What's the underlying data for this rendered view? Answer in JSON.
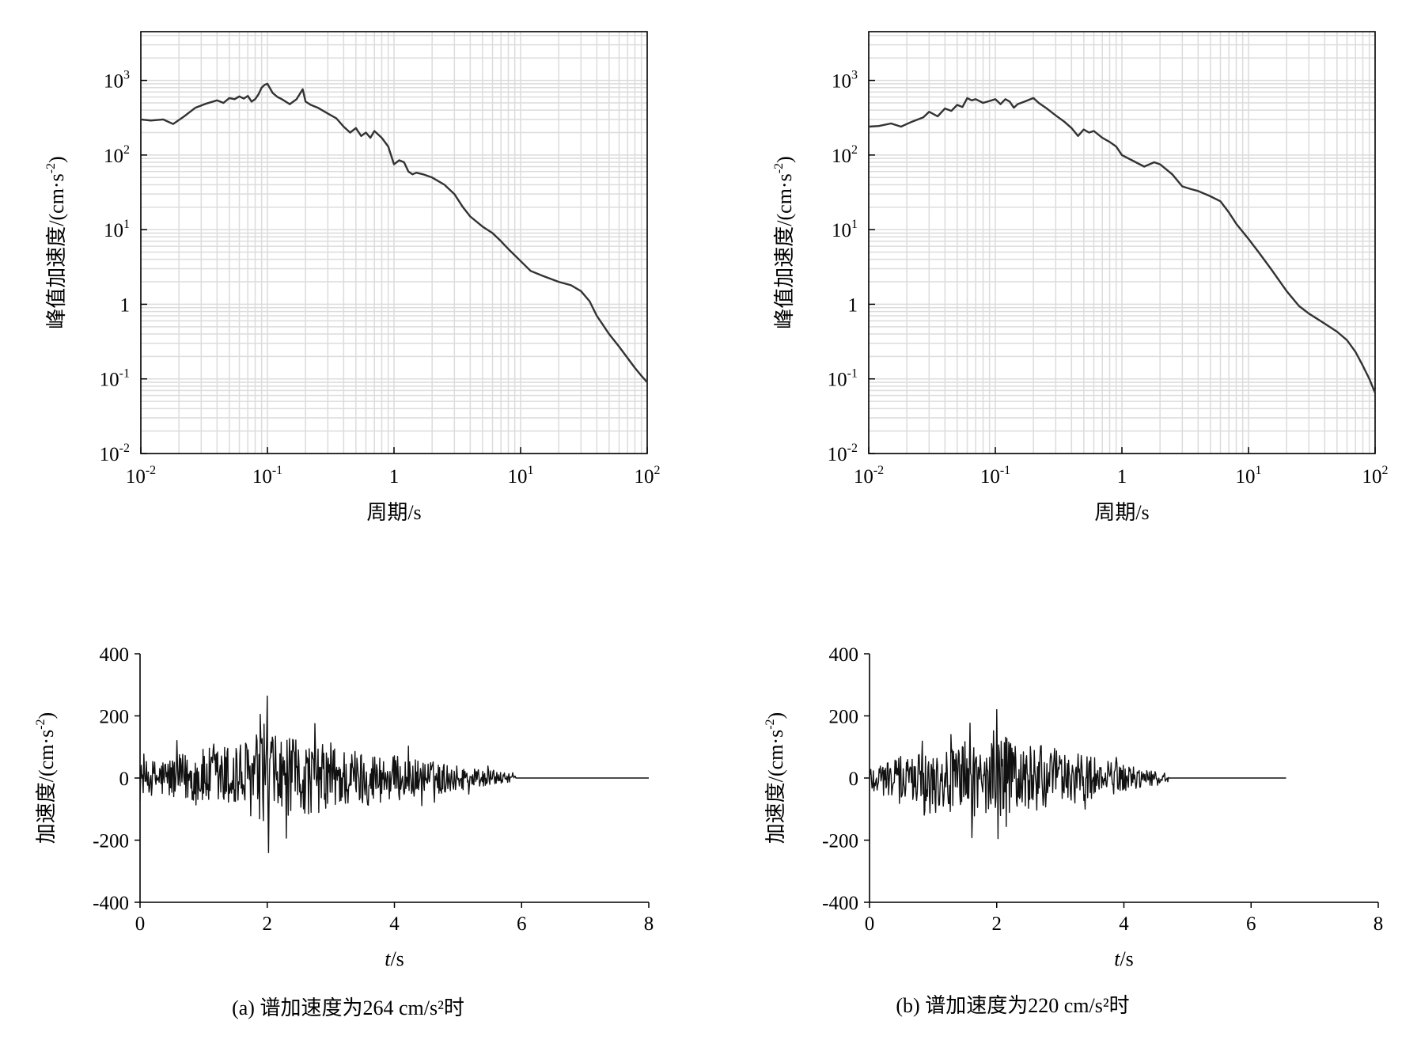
{
  "chart_data": [
    {
      "panel": "a-top",
      "type": "line",
      "xscale": "log",
      "yscale": "log",
      "xlim": [
        0.01,
        100
      ],
      "ylim": [
        0.01,
        4500
      ],
      "x_ticks": [
        {
          "base": "10",
          "exp": "-2"
        },
        {
          "base": "10",
          "exp": "-1"
        },
        {
          "base": "1",
          "exp": ""
        },
        {
          "base": "10",
          "exp": "1"
        },
        {
          "base": "10",
          "exp": "2"
        }
      ],
      "y_ticks": [
        {
          "base": "10",
          "exp": "-2"
        },
        {
          "base": "10",
          "exp": "-1"
        },
        {
          "base": "1",
          "exp": ""
        },
        {
          "base": "10",
          "exp": "1"
        },
        {
          "base": "10",
          "exp": "2"
        },
        {
          "base": "10",
          "exp": "3"
        }
      ],
      "xlabel": "周期/s",
      "ylabel": "峰值加速度/(cm·s⁻²)",
      "grid": true,
      "series": [
        {
          "x": [
            0.01,
            0.012,
            0.015,
            0.018,
            0.022,
            0.027,
            0.033,
            0.04,
            0.045,
            0.05,
            0.055,
            0.06,
            0.065,
            0.07,
            0.075,
            0.08,
            0.085,
            0.09,
            0.095,
            0.1,
            0.11,
            0.12,
            0.13,
            0.15,
            0.17,
            0.19,
            0.2,
            0.22,
            0.25,
            0.3,
            0.35,
            0.4,
            0.45,
            0.5,
            0.55,
            0.6,
            0.65,
            0.7,
            0.8,
            0.9,
            1.0,
            1.1,
            1.2,
            1.3,
            1.4,
            1.5,
            1.7,
            2.0,
            2.5,
            3.0,
            3.5,
            4.0,
            5.0,
            6.0,
            7.0,
            8.0,
            10,
            12,
            15,
            20,
            25,
            30,
            35,
            40,
            50,
            60,
            70,
            80,
            90,
            100
          ],
          "y": [
            300,
            290,
            300,
            260,
            330,
            430,
            490,
            540,
            500,
            580,
            560,
            610,
            570,
            620,
            520,
            560,
            650,
            800,
            870,
            900,
            680,
            600,
            560,
            480,
            560,
            760,
            520,
            470,
            430,
            360,
            310,
            240,
            200,
            230,
            180,
            200,
            170,
            210,
            170,
            130,
            75,
            85,
            80,
            60,
            55,
            58,
            55,
            50,
            40,
            30,
            20,
            15,
            11,
            9,
            7,
            5.5,
            3.8,
            2.8,
            2.4,
            2.0,
            1.8,
            1.5,
            1.1,
            0.7,
            0.4,
            0.27,
            0.19,
            0.14,
            0.11,
            0.09
          ]
        }
      ]
    },
    {
      "panel": "b-top",
      "type": "line",
      "xscale": "log",
      "yscale": "log",
      "xlim": [
        0.01,
        100
      ],
      "ylim": [
        0.01,
        4500
      ],
      "x_ticks": [
        {
          "base": "10",
          "exp": "-2"
        },
        {
          "base": "10",
          "exp": "-1"
        },
        {
          "base": "1",
          "exp": ""
        },
        {
          "base": "10",
          "exp": "1"
        },
        {
          "base": "10",
          "exp": "2"
        }
      ],
      "y_ticks": [
        {
          "base": "10",
          "exp": "-2"
        },
        {
          "base": "10",
          "exp": "-1"
        },
        {
          "base": "1",
          "exp": ""
        },
        {
          "base": "10",
          "exp": "1"
        },
        {
          "base": "10",
          "exp": "2"
        },
        {
          "base": "10",
          "exp": "3"
        }
      ],
      "xlabel": "周期/s",
      "ylabel": "峰值加速度/(cm·s⁻²)",
      "grid": true,
      "series": [
        {
          "x": [
            0.01,
            0.012,
            0.015,
            0.018,
            0.022,
            0.027,
            0.03,
            0.035,
            0.04,
            0.045,
            0.05,
            0.055,
            0.06,
            0.065,
            0.07,
            0.08,
            0.09,
            0.1,
            0.11,
            0.12,
            0.13,
            0.14,
            0.15,
            0.17,
            0.19,
            0.2,
            0.22,
            0.25,
            0.3,
            0.35,
            0.4,
            0.45,
            0.5,
            0.55,
            0.6,
            0.7,
            0.8,
            0.9,
            1.0,
            1.2,
            1.5,
            1.8,
            2.0,
            2.5,
            3.0,
            3.5,
            4.0,
            5.0,
            6.0,
            7.0,
            8.0,
            10,
            12,
            15,
            20,
            25,
            30,
            40,
            50,
            60,
            70,
            80,
            90,
            100
          ],
          "y": [
            240,
            245,
            265,
            240,
            280,
            320,
            380,
            330,
            420,
            390,
            470,
            440,
            580,
            540,
            560,
            500,
            530,
            560,
            480,
            560,
            520,
            430,
            480,
            520,
            560,
            580,
            500,
            430,
            340,
            280,
            230,
            180,
            220,
            200,
            210,
            170,
            150,
            130,
            100,
            85,
            70,
            80,
            75,
            55,
            38,
            35,
            33,
            28,
            24,
            17,
            12,
            7.5,
            5,
            3,
            1.5,
            0.95,
            0.75,
            0.55,
            0.43,
            0.33,
            0.23,
            0.15,
            0.1,
            0.065
          ]
        }
      ]
    },
    {
      "panel": "a-bottom",
      "type": "line",
      "xlim": [
        0,
        8
      ],
      "ylim": [
        -400,
        400
      ],
      "x_ticks": [
        "0",
        "2",
        "4",
        "6",
        "8"
      ],
      "y_ticks": [
        "400",
        "200",
        "0",
        "-200",
        "-400"
      ],
      "xlabel": "t",
      "xlabel_unit": "/s",
      "ylabel": "加速度/(cm·s⁻²)",
      "duration": 8.0,
      "signal_end": 5.9,
      "peak_positive": 264,
      "peak_negative": -240
    },
    {
      "panel": "b-bottom",
      "type": "line",
      "xlim": [
        0,
        8
      ],
      "ylim": [
        -400,
        400
      ],
      "x_ticks": [
        "0",
        "2",
        "4",
        "6",
        "8"
      ],
      "y_ticks": [
        "400",
        "200",
        "0",
        "-200",
        "-400"
      ],
      "xlabel": "t",
      "xlabel_unit": "/s",
      "ylabel": "加速度/(cm·s⁻²)",
      "duration": 6.55,
      "signal_end": 4.7,
      "peak_positive": 220,
      "peak_negative": -195
    }
  ],
  "captions": {
    "a": "(a) 谱加速度为264 cm/s²时",
    "b": "(b) 谱加速度为220 cm/s²时"
  },
  "colors": {
    "line": "#333333",
    "grid": "#dcdcdc",
    "axis": "#000000"
  }
}
